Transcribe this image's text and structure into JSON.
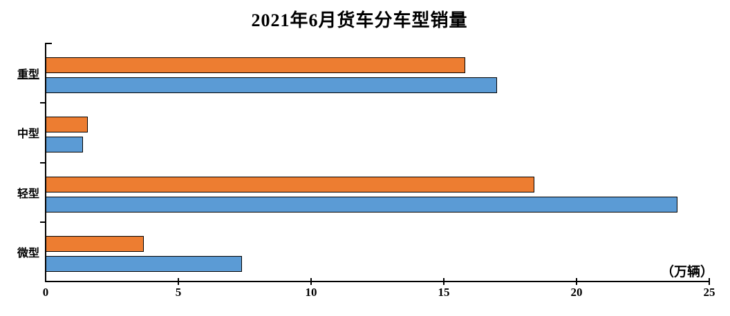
{
  "title": "2021年6月货车分车型销量",
  "unit_label": "（万辆）",
  "colors": {
    "orange": "#ED7D31",
    "blue": "#5B9BD5",
    "axis": "#000000",
    "bar_border": "#000000",
    "background": "#FFFFFF"
  },
  "chart_data": {
    "type": "bar",
    "orientation": "horizontal",
    "title": "2021年6月货车分车型销量",
    "unit_label": "（万辆）",
    "categories": [
      "重型",
      "中型",
      "轻型",
      "微型"
    ],
    "series": [
      {
        "name": "orange",
        "color": "#ED7D31",
        "values": [
          15.8,
          1.6,
          18.4,
          3.7
        ]
      },
      {
        "name": "blue",
        "color": "#5B9BD5",
        "values": [
          17.0,
          1.4,
          23.8,
          7.4
        ]
      }
    ],
    "xlim": [
      0,
      25
    ],
    "xticks": [
      0,
      5,
      10,
      15,
      20,
      25
    ],
    "xtick_labels": [
      "0",
      "5",
      "10",
      "15",
      "20",
      "25"
    ],
    "underlined_category": "重型",
    "legend": "none",
    "grid": false
  }
}
